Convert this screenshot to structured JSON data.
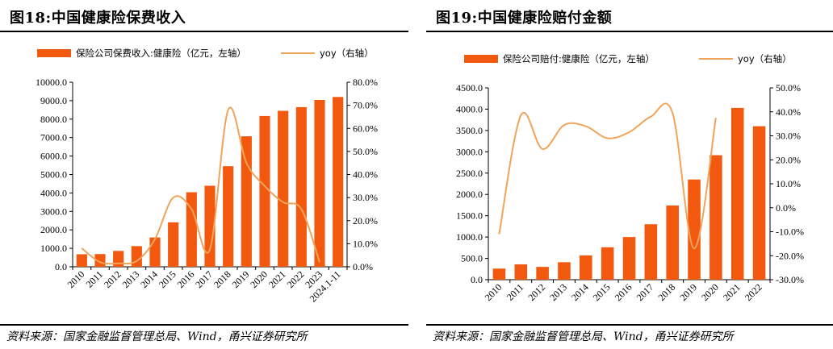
{
  "charts": [
    {
      "id": "left",
      "title": "图18:中国健康险保费收入",
      "source": "资料来源：国家金融监督管理总局、Wind，甬兴证券研究所",
      "colors": {
        "bar": "#F2590F",
        "line": "#F0A45A"
      }
    },
    {
      "id": "right",
      "title": "图19:中国健康险赔付金额",
      "source": "资料来源：国家金融监督管理总局、Wind，甬兴证券研究所",
      "colors": {
        "bar": "#F2590F",
        "line": "#F0A45A"
      }
    }
  ],
  "chart_data": [
    {
      "type": "bar",
      "title": "图18:中国健康险保费收入",
      "categories": [
        "2010",
        "2011",
        "2012",
        "2013",
        "2014",
        "2015",
        "2016",
        "2017",
        "2018",
        "2019",
        "2020",
        "2021",
        "2022",
        "2023",
        "2024.1-11"
      ],
      "series": [
        {
          "name": "保险公司保费收入:健康险（亿元，左轴）",
          "type": "bar",
          "axis": "left",
          "values": [
            680,
            690,
            860,
            1120,
            1590,
            2410,
            4040,
            4390,
            5450,
            7070,
            8170,
            8450,
            8650,
            9040,
            9200
          ]
        },
        {
          "name": "yoy（右轴）",
          "type": "line",
          "axis": "right",
          "values": [
            8.0,
            2.0,
            1.5,
            2.5,
            12.0,
            30.0,
            25.0,
            7.5,
            68.0,
            45.0,
            35.0,
            28.0,
            25.0,
            2.0,
            null
          ]
        }
      ],
      "y_left": {
        "min": 0,
        "max": 10000,
        "step": 1000,
        "decimals": 1,
        "suffix": ""
      },
      "y_right": {
        "min": 0,
        "max": 80,
        "step": 10,
        "decimals": 1,
        "suffix": "%"
      },
      "legend_position": "top",
      "grid": false
    },
    {
      "type": "bar",
      "title": "图19:中国健康险赔付金额",
      "categories": [
        "2010",
        "2011",
        "2012",
        "2013",
        "2014",
        "2015",
        "2016",
        "2017",
        "2018",
        "2019",
        "2020",
        "2021",
        "2022"
      ],
      "series": [
        {
          "name": "保险公司赔付:健康险（亿元，左轴）",
          "type": "bar",
          "axis": "left",
          "values": [
            260,
            360,
            300,
            410,
            570,
            760,
            1000,
            1300,
            1740,
            2350,
            2920,
            4030,
            3600
          ]
        },
        {
          "name": "yoy（右轴）",
          "type": "line",
          "axis": "right",
          "values": [
            -11.0,
            38.5,
            24.5,
            34.5,
            34.0,
            29.0,
            31.5,
            38.0,
            39.5,
            -17.0,
            37.5,
            null,
            null
          ]
        }
      ],
      "y_left": {
        "min": 0,
        "max": 4500,
        "step": 500,
        "decimals": 1,
        "suffix": ""
      },
      "y_right": {
        "min": -30,
        "max": 50,
        "step": 10,
        "decimals": 1,
        "suffix": "%"
      },
      "legend_position": "top",
      "grid": false
    }
  ]
}
